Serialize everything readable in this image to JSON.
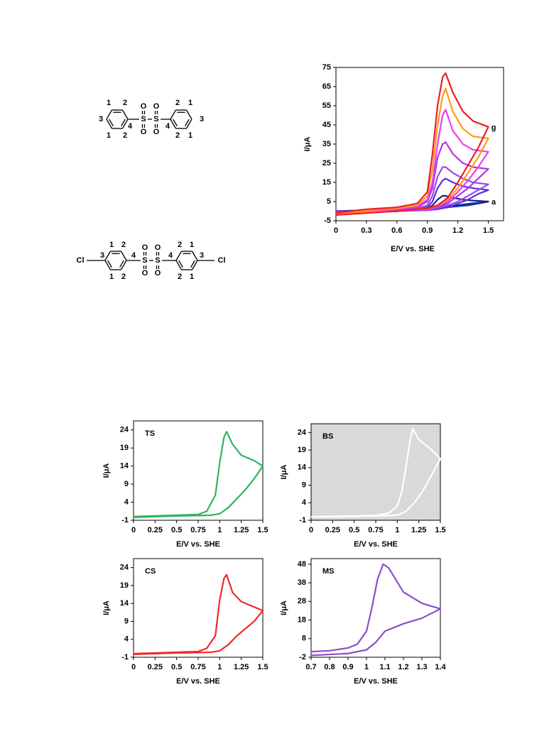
{
  "structures": [
    {
      "labels": [
        "1",
        "2",
        "3",
        "4",
        "1",
        "2",
        "S",
        "O",
        "O",
        "S",
        "O",
        "O",
        "2",
        "1",
        "4",
        "3",
        "2",
        "1"
      ]
    },
    {
      "labels": [
        "Cl",
        "1",
        "2",
        "3",
        "4",
        "1",
        "2",
        "S",
        "O",
        "O",
        "S",
        "O",
        "O",
        "2",
        "1",
        "4",
        "3",
        "2",
        "1",
        "Cl"
      ]
    }
  ],
  "chart_data": [
    {
      "type": "line",
      "ylabel": "I/μA",
      "xlabel": "E/V vs. SHE",
      "xlim": [
        0,
        1.65
      ],
      "ylim": [
        -5,
        75
      ],
      "xticks": [
        0,
        0.3,
        0.6,
        0.9,
        1.2,
        1.5
      ],
      "yticks": [
        -5,
        5,
        15,
        25,
        35,
        45,
        55,
        65,
        75
      ],
      "annotations": [
        {
          "text": "g",
          "color": "#ee1c25"
        },
        {
          "text": "a",
          "color": "#1f4fd6"
        }
      ],
      "x": [
        0,
        0.3,
        0.6,
        0.8,
        0.9,
        0.95,
        1.0,
        1.05,
        1.08,
        1.15,
        1.25,
        1.35,
        1.5,
        1.4,
        1.3,
        1.2,
        1.1,
        1.0,
        0.9,
        0.6,
        0.3,
        0
      ],
      "series": [
        {
          "color": "#1f4fd6",
          "values": [
            0,
            0,
            0.3,
            0.5,
            0.8,
            1,
            1.5,
            2,
            2.3,
            2.8,
            3.5,
            4.2,
            5,
            4,
            3,
            2.5,
            2,
            1.5,
            1,
            0.5,
            0,
            -0.5
          ]
        },
        {
          "color": "#1a237e",
          "values": [
            0,
            0,
            0.5,
            1,
            1.5,
            3,
            6,
            8,
            8,
            7,
            6,
            5.5,
            5,
            4,
            3.5,
            3,
            2.5,
            2,
            1.5,
            1,
            0.5,
            0
          ]
        },
        {
          "color": "#5a2ee0",
          "values": [
            0,
            0,
            0.5,
            1,
            2,
            5,
            12,
            16,
            17,
            15,
            13,
            12,
            11,
            9,
            6,
            4,
            2,
            1,
            0.5,
            0,
            0,
            -0.5
          ]
        },
        {
          "color": "#9a4ae0",
          "values": [
            -0.5,
            0,
            0.5,
            1.5,
            3,
            8,
            18,
            23,
            23,
            20,
            17,
            15,
            14,
            11,
            8,
            5,
            3,
            1.5,
            0.5,
            0,
            -0.5,
            -0.5
          ]
        },
        {
          "color": "#b532e8",
          "values": [
            -0.5,
            0,
            1,
            2,
            5,
            12,
            28,
            35,
            36,
            30,
            25,
            23,
            22,
            17,
            12,
            8,
            4,
            2,
            1,
            0,
            -0.5,
            -1
          ]
        },
        {
          "color": "#e63ef0",
          "values": [
            -1,
            0,
            1,
            2.5,
            6,
            15,
            35,
            50,
            53,
            42,
            35,
            32,
            31,
            23,
            16,
            10,
            5,
            2.5,
            1,
            0,
            -0.5,
            -1
          ]
        },
        {
          "color": "#ff9a1a",
          "values": [
            -1,
            0.5,
            1.5,
            3,
            8,
            22,
            45,
            60,
            64,
            52,
            43,
            39,
            38,
            28,
            20,
            12,
            6,
            3,
            1.5,
            0,
            -0.5,
            -1.5
          ]
        },
        {
          "color": "#ee1c25",
          "values": [
            -1,
            1,
            2,
            4,
            10,
            30,
            55,
            70,
            72,
            62,
            52,
            47,
            44,
            33,
            24,
            15,
            7,
            3,
            1.5,
            0,
            -1,
            -2
          ]
        }
      ]
    },
    {
      "type": "line",
      "title": "TS",
      "ylabel": "I/μA",
      "xlabel": "E/V vs. SHE",
      "xlim": [
        0,
        1.5
      ],
      "ylim": [
        -1,
        26.5
      ],
      "xticks": [
        0,
        0.25,
        0.5,
        0.75,
        1,
        1.25,
        1.5
      ],
      "yticks": [
        -1,
        4,
        9,
        14,
        19,
        24
      ],
      "x": [
        0,
        0.25,
        0.5,
        0.75,
        0.85,
        0.95,
        1.0,
        1.05,
        1.08,
        1.15,
        1.25,
        1.4,
        1.5,
        1.4,
        1.3,
        1.2,
        1.1,
        1.0,
        0.9,
        0.75,
        0.5,
        0.25,
        0
      ],
      "series": [
        {
          "color": "#2db55d",
          "values": [
            0,
            0.2,
            0.4,
            0.6,
            1.5,
            6,
            15,
            22,
            23.5,
            20,
            17,
            15.5,
            14,
            10.5,
            7.5,
            5,
            2.5,
            0.8,
            0.4,
            0.3,
            0.2,
            0,
            -0.2
          ]
        }
      ]
    },
    {
      "type": "line",
      "title": "BS",
      "ylabel": "I/μA",
      "xlabel": "E/V vs. SHE",
      "background": "#d9d9d9",
      "title_color": "#ffffff",
      "xlim": [
        0,
        1.5
      ],
      "ylim": [
        -1,
        26.5
      ],
      "xticks": [
        0,
        0.25,
        0.5,
        0.75,
        1,
        1.25,
        1.5
      ],
      "yticks": [
        -1,
        4,
        9,
        14,
        19,
        24
      ],
      "x": [
        0,
        0.25,
        0.5,
        0.75,
        0.9,
        1.0,
        1.05,
        1.1,
        1.15,
        1.18,
        1.25,
        1.4,
        1.5,
        1.4,
        1.3,
        1.2,
        1.1,
        1.0,
        0.9,
        0.75,
        0.5,
        0.25,
        0
      ],
      "series": [
        {
          "color": "#ffffff",
          "values": [
            0,
            0.1,
            0.2,
            0.4,
            1,
            3,
            7,
            14,
            22,
            25,
            22,
            19,
            16.5,
            12,
            7.5,
            4,
            1.5,
            0.5,
            0.3,
            0.2,
            0.1,
            0,
            0
          ]
        }
      ]
    },
    {
      "type": "line",
      "title": "CS",
      "ylabel": "I/μA",
      "xlabel": "E/V vs. SHE",
      "xlim": [
        0,
        1.5
      ],
      "ylim": [
        -1,
        26.5
      ],
      "xticks": [
        0,
        0.25,
        0.5,
        0.75,
        1,
        1.25,
        1.5
      ],
      "yticks": [
        -1,
        4,
        9,
        14,
        19,
        24
      ],
      "x": [
        0,
        0.25,
        0.5,
        0.75,
        0.85,
        0.95,
        1.0,
        1.05,
        1.08,
        1.15,
        1.25,
        1.4,
        1.5,
        1.4,
        1.3,
        1.2,
        1.1,
        1.0,
        0.9,
        0.75,
        0.5,
        0.25,
        0
      ],
      "series": [
        {
          "color": "#ee2a2a",
          "values": [
            0,
            0.2,
            0.4,
            0.6,
            1.5,
            5,
            15,
            21,
            22,
            17,
            14.5,
            13,
            12,
            9,
            7,
            5,
            2.5,
            0.8,
            0.4,
            0.3,
            0.2,
            0,
            -0.2
          ]
        }
      ]
    },
    {
      "type": "line",
      "title": "MS",
      "ylabel": "I/μA",
      "xlabel": "E/V vs. SHE",
      "xlim": [
        0.7,
        1.4
      ],
      "ylim": [
        -2,
        51
      ],
      "xticks": [
        0.7,
        0.8,
        0.9,
        1,
        1.1,
        1.2,
        1.3,
        1.4
      ],
      "yticks": [
        -2,
        8,
        18,
        28,
        38,
        48
      ],
      "x": [
        0.7,
        0.8,
        0.9,
        0.95,
        1.0,
        1.03,
        1.06,
        1.09,
        1.12,
        1.2,
        1.3,
        1.4,
        1.3,
        1.2,
        1.1,
        1.05,
        1.0,
        0.9,
        0.8,
        0.7
      ],
      "series": [
        {
          "color": "#8a4fc6",
          "values": [
            1,
            1.5,
            3,
            5,
            12,
            25,
            40,
            48,
            46,
            33,
            27,
            24,
            19,
            16,
            12,
            6,
            2,
            0,
            -0.5,
            -1
          ]
        }
      ]
    }
  ]
}
